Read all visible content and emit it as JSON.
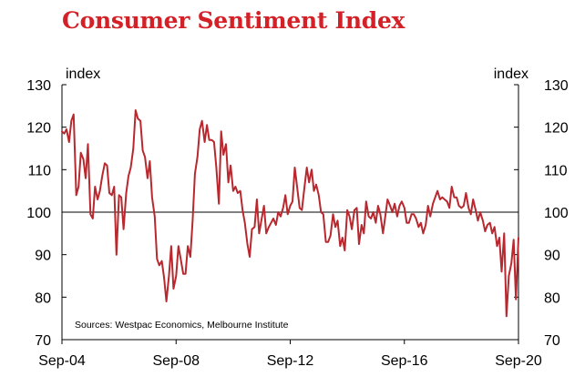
{
  "title": "Consumer Sentiment Index",
  "source": "Sources: Westpac Economics, Melbourne Institute",
  "chart_data": {
    "type": "line",
    "title": "Consumer Sentiment Index",
    "ylabel_left": "index",
    "ylabel_right": "index",
    "ylim": [
      70,
      130
    ],
    "yticks": [
      70,
      80,
      90,
      100,
      110,
      120,
      130
    ],
    "xticks": [
      "Sep-04",
      "Sep-08",
      "Sep-12",
      "Sep-16",
      "Sep-20"
    ],
    "xtick_dates": [
      2004.67,
      2008.67,
      2012.67,
      2016.67,
      2020.67
    ],
    "xlim": [
      2004.67,
      2020.67
    ],
    "reference_line": 100,
    "grid": false,
    "colors": {
      "title": "#d42027",
      "series": "#b8282e",
      "axis": "#000000"
    },
    "series": [
      {
        "name": "",
        "points": [
          [
            2004.67,
            119
          ],
          [
            2004.75,
            118.5
          ],
          [
            2004.83,
            119.5
          ],
          [
            2004.92,
            116.5
          ],
          [
            2005.0,
            121.5
          ],
          [
            2005.08,
            123
          ],
          [
            2005.17,
            104
          ],
          [
            2005.25,
            106
          ],
          [
            2005.33,
            114
          ],
          [
            2005.42,
            112.5
          ],
          [
            2005.5,
            108
          ],
          [
            2005.58,
            116
          ],
          [
            2005.67,
            99.5
          ],
          [
            2005.75,
            98.5
          ],
          [
            2005.83,
            106
          ],
          [
            2005.92,
            103
          ],
          [
            2006.0,
            105
          ],
          [
            2006.08,
            108.5
          ],
          [
            2006.17,
            111.5
          ],
          [
            2006.25,
            111
          ],
          [
            2006.33,
            104.5
          ],
          [
            2006.42,
            104
          ],
          [
            2006.5,
            106
          ],
          [
            2006.58,
            90
          ],
          [
            2006.67,
            104
          ],
          [
            2006.75,
            103.5
          ],
          [
            2006.83,
            96
          ],
          [
            2006.92,
            104.5
          ],
          [
            2007.0,
            108.5
          ],
          [
            2007.08,
            110.5
          ],
          [
            2007.17,
            115
          ],
          [
            2007.25,
            124
          ],
          [
            2007.33,
            122
          ],
          [
            2007.42,
            121.5
          ],
          [
            2007.5,
            114.5
          ],
          [
            2007.58,
            113
          ],
          [
            2007.67,
            108
          ],
          [
            2007.75,
            112
          ],
          [
            2007.83,
            103.5
          ],
          [
            2007.92,
            99
          ],
          [
            2008.0,
            89
          ],
          [
            2008.08,
            87.5
          ],
          [
            2008.17,
            88.5
          ],
          [
            2008.25,
            84.5
          ],
          [
            2008.33,
            79
          ],
          [
            2008.42,
            85
          ],
          [
            2008.5,
            92
          ],
          [
            2008.58,
            82
          ],
          [
            2008.67,
            85
          ],
          [
            2008.75,
            92
          ],
          [
            2008.83,
            89
          ],
          [
            2008.92,
            85.5
          ],
          [
            2009.0,
            85.5
          ],
          [
            2009.08,
            92
          ],
          [
            2009.17,
            89.5
          ],
          [
            2009.25,
            98
          ],
          [
            2009.33,
            109
          ],
          [
            2009.42,
            113
          ],
          [
            2009.5,
            119.5
          ],
          [
            2009.58,
            121.5
          ],
          [
            2009.67,
            116.5
          ],
          [
            2009.75,
            120.5
          ],
          [
            2009.83,
            117
          ],
          [
            2009.92,
            117
          ],
          [
            2010.0,
            116.5
          ],
          [
            2010.08,
            110.5
          ],
          [
            2010.17,
            102
          ],
          [
            2010.25,
            119
          ],
          [
            2010.33,
            113.5
          ],
          [
            2010.42,
            116
          ],
          [
            2010.5,
            107
          ],
          [
            2010.58,
            111
          ],
          [
            2010.67,
            105
          ],
          [
            2010.75,
            106
          ],
          [
            2010.83,
            104.5
          ],
          [
            2010.92,
            105
          ],
          [
            2011.0,
            100.5
          ],
          [
            2011.08,
            97.5
          ],
          [
            2011.17,
            92.5
          ],
          [
            2011.25,
            89.5
          ],
          [
            2011.33,
            96
          ],
          [
            2011.42,
            96.5
          ],
          [
            2011.5,
            103
          ],
          [
            2011.58,
            95
          ],
          [
            2011.67,
            98.5
          ],
          [
            2011.75,
            101.5
          ],
          [
            2011.83,
            95
          ],
          [
            2011.92,
            96.5
          ],
          [
            2012.0,
            97.5
          ],
          [
            2012.08,
            98.5
          ],
          [
            2012.17,
            97
          ],
          [
            2012.25,
            100
          ],
          [
            2012.33,
            99
          ],
          [
            2012.42,
            101
          ],
          [
            2012.5,
            104
          ],
          [
            2012.58,
            99.5
          ],
          [
            2012.67,
            101.5
          ],
          [
            2012.75,
            102.5
          ],
          [
            2012.83,
            110.5
          ],
          [
            2012.92,
            105.5
          ],
          [
            2013.0,
            101
          ],
          [
            2013.08,
            100.5
          ],
          [
            2013.17,
            106
          ],
          [
            2013.25,
            110.5
          ],
          [
            2013.33,
            107
          ],
          [
            2013.42,
            110
          ],
          [
            2013.5,
            105
          ],
          [
            2013.58,
            106.5
          ],
          [
            2013.67,
            104
          ],
          [
            2013.75,
            100
          ],
          [
            2013.83,
            99.5
          ],
          [
            2013.92,
            93
          ],
          [
            2014.0,
            93
          ],
          [
            2014.08,
            94.5
          ],
          [
            2014.17,
            99.5
          ],
          [
            2014.25,
            96.5
          ],
          [
            2014.33,
            98
          ],
          [
            2014.42,
            92
          ],
          [
            2014.5,
            94
          ],
          [
            2014.58,
            91
          ],
          [
            2014.67,
            100.5
          ],
          [
            2014.75,
            99
          ],
          [
            2014.83,
            96
          ],
          [
            2014.92,
            100.5
          ],
          [
            2015.0,
            101
          ],
          [
            2015.08,
            92.5
          ],
          [
            2015.17,
            97
          ],
          [
            2015.25,
            95
          ],
          [
            2015.33,
            102.5
          ],
          [
            2015.42,
            99
          ],
          [
            2015.5,
            98.5
          ],
          [
            2015.58,
            100
          ],
          [
            2015.67,
            97.5
          ],
          [
            2015.75,
            101.5
          ],
          [
            2015.83,
            99.5
          ],
          [
            2015.92,
            95
          ],
          [
            2016.0,
            99
          ],
          [
            2016.08,
            103
          ],
          [
            2016.17,
            101.5
          ],
          [
            2016.25,
            100
          ],
          [
            2016.33,
            102
          ],
          [
            2016.42,
            99
          ],
          [
            2016.5,
            101.5
          ],
          [
            2016.58,
            102.5
          ],
          [
            2016.67,
            101
          ],
          [
            2016.75,
            97.5
          ],
          [
            2016.83,
            97.5
          ],
          [
            2016.92,
            99.5
          ],
          [
            2017.0,
            99.5
          ],
          [
            2017.08,
            98.5
          ],
          [
            2017.17,
            96.5
          ],
          [
            2017.25,
            97.5
          ],
          [
            2017.33,
            95
          ],
          [
            2017.42,
            97
          ],
          [
            2017.5,
            101.5
          ],
          [
            2017.58,
            99
          ],
          [
            2017.67,
            102
          ],
          [
            2017.75,
            103.5
          ],
          [
            2017.83,
            105
          ],
          [
            2017.92,
            103
          ],
          [
            2018.0,
            103.5
          ],
          [
            2018.08,
            103
          ],
          [
            2018.17,
            102.5
          ],
          [
            2018.25,
            101
          ],
          [
            2018.33,
            106
          ],
          [
            2018.42,
            103.5
          ],
          [
            2018.5,
            103.5
          ],
          [
            2018.58,
            101.5
          ],
          [
            2018.67,
            101
          ],
          [
            2018.75,
            101.5
          ],
          [
            2018.83,
            104.5
          ],
          [
            2018.92,
            101
          ],
          [
            2019.0,
            99.5
          ],
          [
            2019.08,
            103
          ],
          [
            2019.17,
            100.5
          ],
          [
            2019.25,
            98
          ],
          [
            2019.33,
            100
          ],
          [
            2019.42,
            98
          ],
          [
            2019.5,
            95.5
          ],
          [
            2019.58,
            97
          ],
          [
            2019.67,
            97.5
          ],
          [
            2019.75,
            95
          ],
          [
            2019.83,
            96.5
          ],
          [
            2019.92,
            92
          ],
          [
            2020.0,
            94
          ],
          [
            2020.08,
            86
          ],
          [
            2020.17,
            95
          ],
          [
            2020.25,
            75.5
          ],
          [
            2020.33,
            85
          ],
          [
            2020.42,
            88
          ],
          [
            2020.5,
            93.5
          ],
          [
            2020.58,
            79.5
          ],
          [
            2020.67,
            94
          ]
        ]
      }
    ]
  }
}
